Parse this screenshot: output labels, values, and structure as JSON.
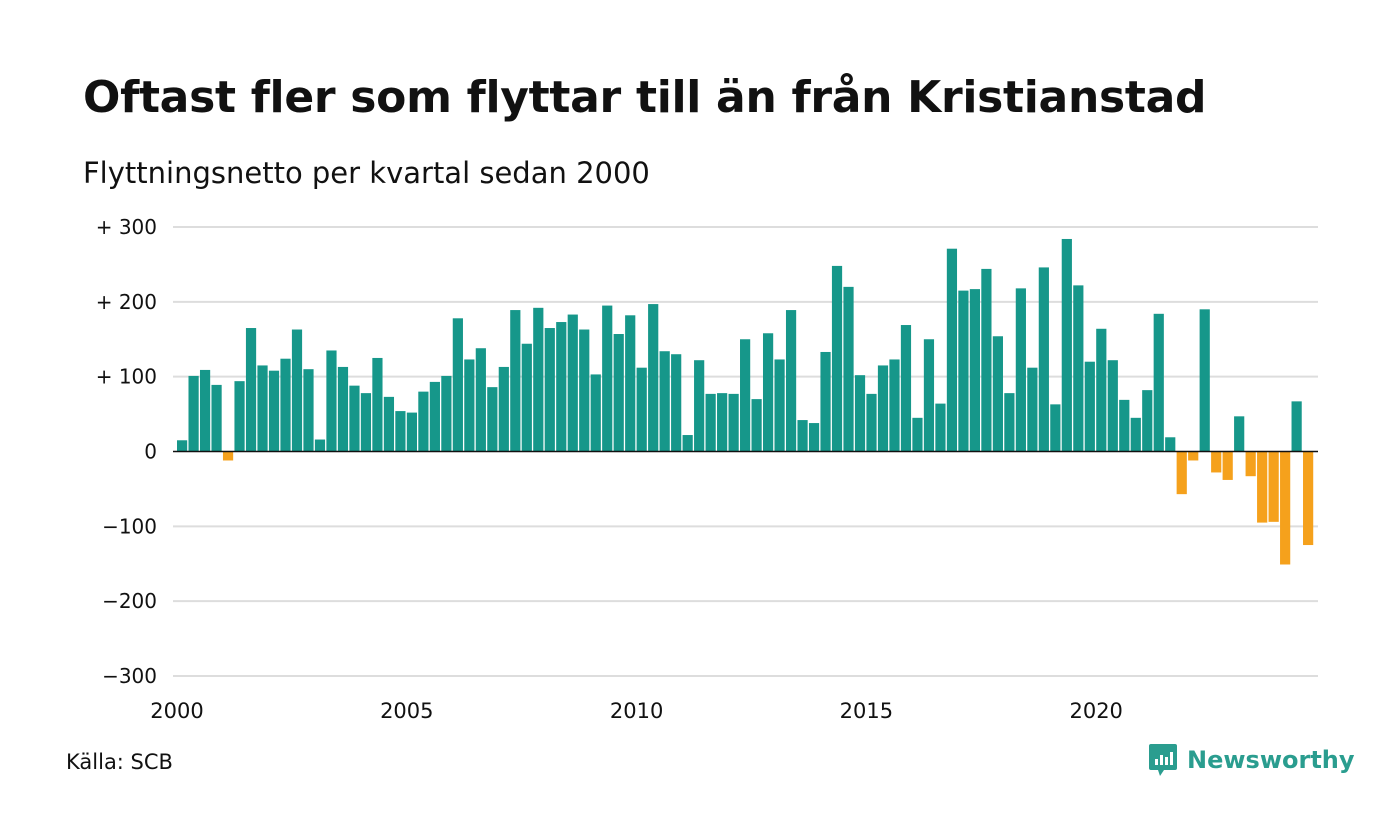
{
  "title": "Oftast fler som flyttar till än från Kristianstad",
  "subtitle": "Flyttningsnetto per kvartal sedan 2000",
  "source": "Källa: SCB",
  "brand": {
    "name": "Newsworthy",
    "icon": "newsworthy-logo-icon"
  },
  "colors": {
    "positive": "#16978a",
    "negative": "#f5a11c",
    "grid": "#dddddd",
    "zero_line": "#111111",
    "brand": "#2a9d8f"
  },
  "chart_data": {
    "type": "bar",
    "title": "Oftast fler som flyttar till än från Kristianstad",
    "subtitle": "Flyttningsnetto per kvartal sedan 2000",
    "xlabel": "",
    "ylabel": "",
    "x_start": "2000 Q1",
    "frequency": "quarterly",
    "ylim": [
      -300,
      300
    ],
    "y_ticks": [
      300,
      200,
      100,
      0,
      -100,
      -200,
      -300
    ],
    "y_tick_labels": [
      "+ 300",
      "+ 200",
      "+ 100",
      "0",
      "−100",
      "−200",
      "−300"
    ],
    "x_ticks": [
      2000,
      2005,
      2010,
      2015,
      2020
    ],
    "x_tick_labels": [
      "2000",
      "2005",
      "2010",
      "2015",
      "2020"
    ],
    "grid": true,
    "legend": "none",
    "values": [
      15,
      101,
      109,
      89,
      -12,
      94,
      165,
      115,
      108,
      124,
      163,
      110,
      16,
      135,
      113,
      88,
      78,
      125,
      73,
      54,
      52,
      80,
      93,
      101,
      178,
      123,
      138,
      86,
      113,
      189,
      144,
      192,
      165,
      173,
      183,
      163,
      103,
      195,
      157,
      182,
      112,
      197,
      134,
      130,
      22,
      122,
      77,
      78,
      77,
      150,
      70,
      158,
      123,
      189,
      42,
      38,
      133,
      248,
      220,
      102,
      77,
      115,
      123,
      169,
      45,
      150,
      64,
      271,
      215,
      217,
      244,
      154,
      78,
      218,
      112,
      246,
      63,
      284,
      222,
      120,
      164,
      122,
      69,
      45,
      82,
      184,
      19,
      -57,
      -12,
      190,
      -28,
      -38,
      47,
      -33,
      -95,
      -94,
      -151,
      67,
      -125
    ]
  }
}
